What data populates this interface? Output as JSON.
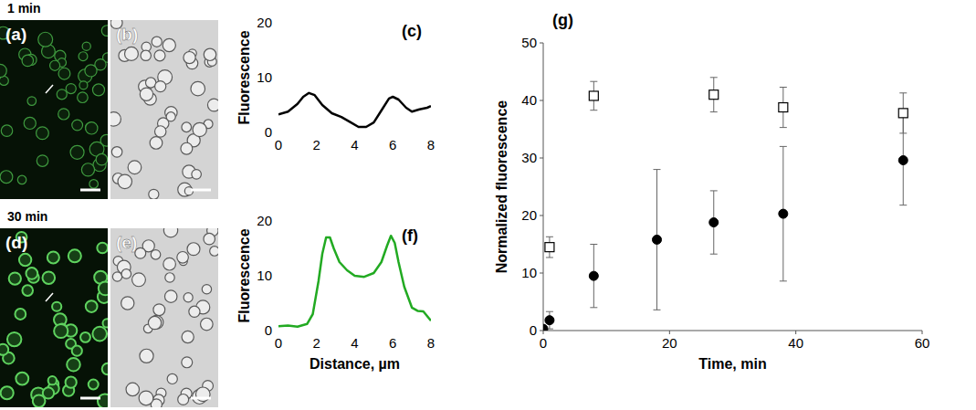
{
  "image_panels": [
    {
      "title": "1 min",
      "labels": [
        "(a)",
        "(b)"
      ]
    },
    {
      "title": "30 min",
      "labels": [
        "(d)",
        "(e)"
      ]
    }
  ],
  "chart_data": [
    {
      "type": "line",
      "title": "(c)",
      "y_label": "Fluorescence",
      "color": "#000000",
      "x": [
        0,
        0.5,
        1,
        1.3,
        1.6,
        1.9,
        2.3,
        2.8,
        3.3,
        3.8,
        4.2,
        4.6,
        5,
        5.4,
        5.8,
        6,
        6.3,
        6.7,
        7,
        7.4,
        7.8,
        8
      ],
      "values": [
        3.3,
        3.8,
        5.2,
        6.5,
        7.2,
        6.8,
        5,
        3.5,
        2.8,
        1.8,
        1.0,
        1.0,
        1.8,
        4,
        6.2,
        6.5,
        6,
        4.5,
        3.8,
        4.2,
        4.5,
        4.8
      ],
      "xlim": [
        0,
        8
      ],
      "xticks": [
        0,
        2,
        4,
        6,
        8
      ],
      "ylim": [
        0,
        20
      ],
      "yticks": [
        0,
        10,
        20
      ]
    },
    {
      "type": "line",
      "title": "(f)",
      "x_label": "Distance, µm",
      "y_label": "Fluorescence",
      "color": "#22aa22",
      "x": [
        0,
        0.5,
        1,
        1.5,
        1.8,
        2.1,
        2.3,
        2.5,
        2.7,
        2.9,
        3.2,
        3.6,
        4,
        4.5,
        5,
        5.4,
        5.7,
        5.9,
        6.1,
        6.3,
        6.6,
        7,
        7.3,
        7.6,
        8
      ],
      "values": [
        0.8,
        0.9,
        0.7,
        1.2,
        3,
        9,
        14,
        17,
        17,
        15,
        12.5,
        11,
        10,
        9.8,
        10.5,
        12.5,
        15.5,
        17.3,
        16,
        12.5,
        8,
        4.2,
        3.6,
        3.5,
        1.8
      ],
      "xlim": [
        0,
        8
      ],
      "xticks": [
        0,
        2,
        4,
        6,
        8
      ],
      "ylim": [
        0,
        20
      ],
      "yticks": [
        0,
        10,
        20
      ]
    },
    {
      "type": "scatter",
      "title": "(g)",
      "x_label": "Time, min",
      "y_label": "Normalized fluorescence",
      "xlim": [
        0,
        60
      ],
      "xticks": [
        0,
        20,
        40,
        60
      ],
      "ylim": [
        0,
        50
      ],
      "yticks": [
        0,
        10,
        20,
        30,
        40,
        50
      ],
      "series": [
        {
          "marker": "square",
          "color": "#000000",
          "x": [
            1,
            8,
            27,
            38,
            57
          ],
          "values": [
            14.5,
            40.8,
            41,
            38.8,
            37.8
          ],
          "errors": [
            1.8,
            2.5,
            3,
            3.5,
            3.5
          ]
        },
        {
          "marker": "circle",
          "color": "#000000",
          "x": [
            0,
            1,
            8,
            18,
            27,
            38,
            57
          ],
          "values": [
            0.3,
            1.8,
            9.5,
            15.8,
            18.8,
            20.3,
            29.6
          ],
          "errors": [
            0.3,
            1.5,
            5.5,
            12.2,
            5.5,
            11.7,
            7.8
          ]
        }
      ]
    }
  ]
}
